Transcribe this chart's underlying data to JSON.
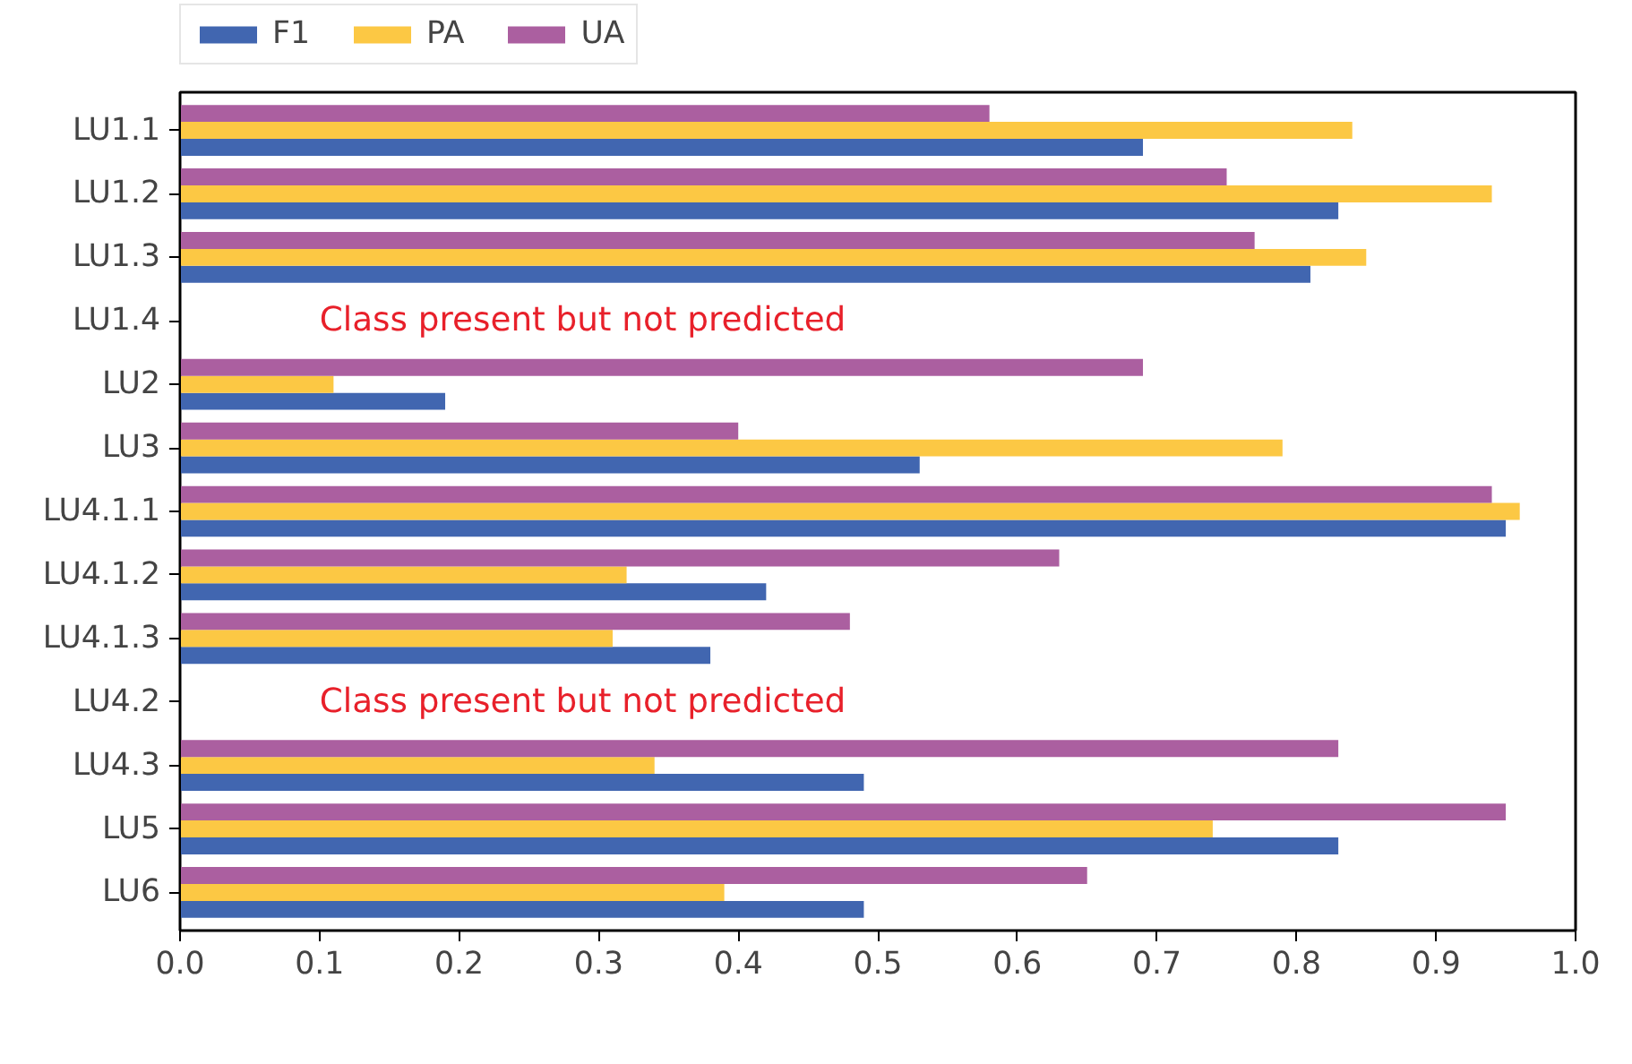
{
  "chart_data": {
    "type": "bar",
    "orientation": "horizontal",
    "categories": [
      "LU1.1",
      "LU1.2",
      "LU1.3",
      "LU1.4",
      "LU2",
      "LU3",
      "LU4.1.1",
      "LU4.1.2",
      "LU4.1.3",
      "LU4.2",
      "LU4.3",
      "LU5",
      "LU6"
    ],
    "series": [
      {
        "name": "F1",
        "color": "#4166b0",
        "values": [
          0.69,
          0.83,
          0.81,
          null,
          0.19,
          0.53,
          0.95,
          0.42,
          0.38,
          null,
          0.49,
          0.83,
          0.49
        ]
      },
      {
        "name": "PA",
        "color": "#fcc844",
        "values": [
          0.84,
          0.94,
          0.85,
          null,
          0.11,
          0.79,
          0.96,
          0.32,
          0.31,
          null,
          0.34,
          0.74,
          0.39
        ]
      },
      {
        "name": "UA",
        "color": "#ab5fa0",
        "values": [
          0.58,
          0.75,
          0.77,
          null,
          0.69,
          0.4,
          0.94,
          0.63,
          0.48,
          null,
          0.83,
          0.95,
          0.65
        ]
      }
    ],
    "xlim": [
      0,
      1
    ],
    "xticks": [
      {
        "value": 0,
        "label": "0.0"
      },
      0.1,
      0.2,
      0.3,
      0.4,
      0.5,
      0.6,
      0.7,
      0.8,
      0.9,
      {
        "value": 1,
        "label": "1.0"
      }
    ],
    "annotations": [
      "Class present but not predicted",
      "Class present but not predicted"
    ],
    "grid": false,
    "legend": "top left"
  }
}
